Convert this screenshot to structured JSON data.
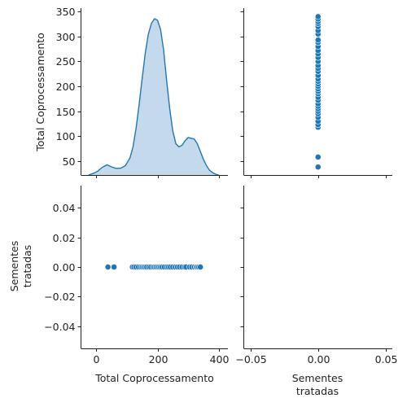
{
  "chart_data": {
    "type": "scatter",
    "layout": "pairplot-2x2",
    "variables": [
      "Total Coprocessamento",
      "Sementes tratadas"
    ],
    "point_color": "#1f77b4",
    "kde_fill_color": "#a6c4e4",
    "kde_line_color": "#1f77b4",
    "labels": {
      "total_coprocessamento": "Total Coprocessamento",
      "sementes_line1": "Sementes",
      "sementes_line2": "tratadas"
    },
    "panels": {
      "kde_total": {
        "type": "area",
        "xlim": [
          -50,
          430
        ],
        "x_ticks": [
          0,
          200,
          400
        ],
        "y_ticks": [
          50,
          100,
          150,
          200,
          250,
          300,
          350
        ],
        "y_tick_labels": [
          "50",
          "100",
          "150",
          "200",
          "250",
          "300",
          "350"
        ],
        "ylim": [
          22,
          357
        ],
        "x": [
          -25,
          -10,
          5,
          20,
          35,
          50,
          65,
          80,
          95,
          110,
          120,
          130,
          140,
          150,
          160,
          170,
          180,
          190,
          200,
          210,
          220,
          230,
          240,
          250,
          260,
          270,
          280,
          290,
          300,
          310,
          320,
          330,
          340,
          350,
          360,
          370,
          380,
          390,
          395,
          400
        ],
        "density_share": [
          0.0,
          0.01,
          0.025,
          0.05,
          0.065,
          0.052,
          0.042,
          0.044,
          0.06,
          0.11,
          0.18,
          0.3,
          0.45,
          0.62,
          0.78,
          0.9,
          0.97,
          1.0,
          0.99,
          0.93,
          0.8,
          0.6,
          0.42,
          0.28,
          0.2,
          0.18,
          0.19,
          0.22,
          0.24,
          0.235,
          0.23,
          0.2,
          0.15,
          0.1,
          0.06,
          0.03,
          0.015,
          0.005,
          0.002,
          0.0
        ]
      },
      "scatter_sementes_vs_total": {
        "type": "scatter",
        "xlim": [
          -0.055,
          0.055
        ],
        "x_ticks": [
          -0.05,
          0.0,
          0.05
        ],
        "x_tick_labels": [
          "−0.05",
          "0.00",
          "0.05"
        ],
        "ylim": [
          22,
          357
        ],
        "x": [
          0,
          0,
          0,
          0,
          0,
          0,
          0,
          0,
          0,
          0,
          0,
          0,
          0,
          0,
          0,
          0,
          0,
          0,
          0,
          0,
          0,
          0,
          0,
          0,
          0,
          0,
          0,
          0,
          0,
          0,
          0,
          0,
          0,
          0,
          0,
          0,
          0,
          0
        ],
        "y": [
          38,
          58,
          118,
          123,
          130,
          138,
          145,
          150,
          155,
          160,
          165,
          172,
          178,
          185,
          190,
          195,
          200,
          205,
          210,
          215,
          222,
          230,
          236,
          242,
          250,
          258,
          265,
          272,
          280,
          288,
          293,
          305,
          312,
          320,
          326,
          330,
          335,
          340
        ]
      },
      "scatter_total_vs_sementes": {
        "type": "scatter",
        "xlim": [
          -50,
          430
        ],
        "x_ticks": [
          0,
          200,
          400
        ],
        "y_ticks": [
          -0.04,
          -0.02,
          0.0,
          0.02,
          0.04
        ],
        "y_tick_labels": [
          "−0.04",
          "−0.02",
          "0.00",
          "0.02",
          "0.04"
        ],
        "ylim": [
          -0.055,
          0.055
        ],
        "x": [
          38,
          58,
          118,
          123,
          130,
          138,
          145,
          150,
          155,
          160,
          165,
          172,
          178,
          185,
          190,
          195,
          200,
          205,
          210,
          215,
          222,
          230,
          236,
          242,
          250,
          258,
          265,
          272,
          280,
          288,
          293,
          305,
          312,
          320,
          326,
          330,
          335,
          340
        ],
        "y": [
          0,
          0,
          0,
          0,
          0,
          0,
          0,
          0,
          0,
          0,
          0,
          0,
          0,
          0,
          0,
          0,
          0,
          0,
          0,
          0,
          0,
          0,
          0,
          0,
          0,
          0,
          0,
          0,
          0,
          0,
          0,
          0,
          0,
          0,
          0,
          0,
          0,
          0
        ]
      },
      "kde_sementes": {
        "type": "area",
        "xlim": [
          -0.055,
          0.055
        ],
        "x_ticks": [
          -0.05,
          0.0,
          0.05
        ],
        "x_tick_labels": [
          "−0.05",
          "0.00",
          "0.05"
        ],
        "empty": true
      }
    }
  }
}
